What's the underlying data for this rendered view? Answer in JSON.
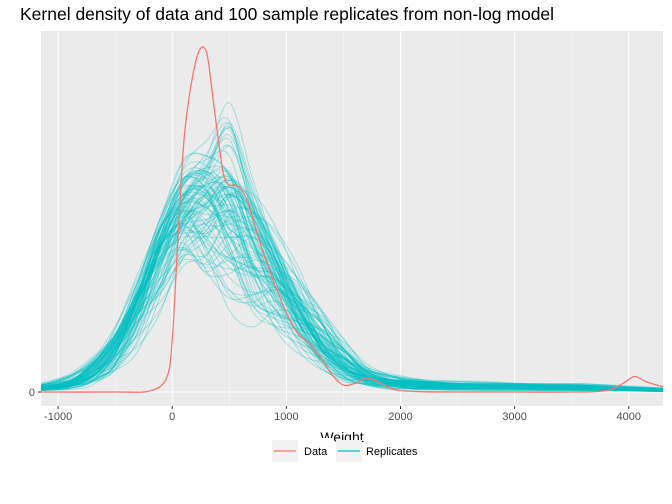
{
  "chart_data": {
    "type": "line",
    "title": "Kernel density of data and 100 sample replicates from non-log model",
    "xlabel": "Weight",
    "ylabel": "",
    "xlim": [
      -1150,
      4300
    ],
    "ylim": [
      0,
      1
    ],
    "x_ticks": [
      -1000,
      0,
      1000,
      2000,
      3000,
      4000
    ],
    "x_tick_labels": [
      "-1000",
      "0",
      "1000",
      "2000",
      "3000",
      "4000"
    ],
    "y_ticks": [
      0
    ],
    "y_tick_labels": [
      "0"
    ],
    "grid": true,
    "legend": {
      "position": "bottom",
      "entries": [
        {
          "label": "Data",
          "color": "#F8766D"
        },
        {
          "label": "Replicates",
          "color": "#00BFC4"
        }
      ]
    },
    "series": [
      {
        "name": "Data",
        "color": "#F8766D",
        "x": [
          -1150,
          -500,
          -200,
          -50,
          0,
          50,
          100,
          150,
          200,
          230,
          260,
          280,
          300,
          320,
          350,
          400,
          450,
          500,
          550,
          600,
          650,
          700,
          800,
          900,
          1000,
          1100,
          1200,
          1300,
          1400,
          1500,
          1600,
          1700,
          1800,
          1900,
          2000,
          2200,
          2500,
          3000,
          3500,
          3800,
          3950,
          4050,
          4150,
          4300
        ],
        "values": [
          0.0,
          0.0,
          0.003,
          0.04,
          0.15,
          0.45,
          0.72,
          0.86,
          0.95,
          0.985,
          1.0,
          0.998,
          0.985,
          0.95,
          0.87,
          0.74,
          0.63,
          0.6,
          0.6,
          0.59,
          0.56,
          0.51,
          0.4,
          0.31,
          0.23,
          0.17,
          0.14,
          0.1,
          0.05,
          0.02,
          0.025,
          0.04,
          0.03,
          0.012,
          0.004,
          0.001,
          0.0,
          0.0,
          0.0,
          0.004,
          0.025,
          0.045,
          0.03,
          0.015
        ]
      },
      {
        "name": "Replicates",
        "color": "#00BFC4",
        "opacity": 0.35,
        "replicate_count": 100,
        "x": [
          -1150,
          -900,
          -700,
          -500,
          -300,
          -100,
          100,
          300,
          500,
          700,
          900,
          1100,
          1300,
          1500,
          1700,
          1900,
          2100,
          2400,
          2800,
          3200,
          3600,
          4000,
          4300
        ],
        "envelope_mean": [
          0.01,
          0.025,
          0.06,
          0.13,
          0.26,
          0.42,
          0.53,
          0.57,
          0.54,
          0.45,
          0.34,
          0.23,
          0.14,
          0.08,
          0.045,
          0.03,
          0.022,
          0.018,
          0.016,
          0.014,
          0.012,
          0.008,
          0.004
        ],
        "envelope_low": [
          0.0,
          0.003,
          0.01,
          0.03,
          0.08,
          0.17,
          0.3,
          0.2,
          0.16,
          0.12,
          0.11,
          0.08,
          0.04,
          0.01,
          0.004,
          0.002,
          0.001,
          0.0,
          0.0,
          0.0,
          0.0,
          0.0,
          0.0
        ],
        "envelope_high": [
          0.03,
          0.06,
          0.12,
          0.22,
          0.38,
          0.56,
          0.72,
          0.76,
          0.92,
          0.7,
          0.55,
          0.42,
          0.3,
          0.18,
          0.09,
          0.06,
          0.05,
          0.04,
          0.035,
          0.03,
          0.028,
          0.02,
          0.015
        ]
      }
    ]
  }
}
